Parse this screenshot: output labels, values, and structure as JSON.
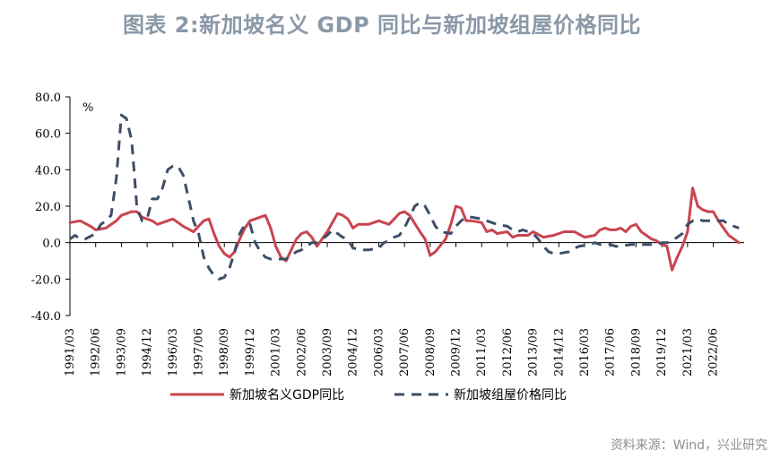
{
  "page": {
    "title": "图表 2:新加坡名义 GDP 同比与新加坡组屋价格同比",
    "source": "资料来源：Wind，兴业研究"
  },
  "chart_data": {
    "type": "line",
    "unit_label": "%",
    "ylim": [
      -40,
      80
    ],
    "yticks": [
      "80.0",
      "60.0",
      "40.0",
      "20.0",
      "0.0",
      "-20.0",
      "-40.0"
    ],
    "ytick_values": [
      80,
      60,
      40,
      20,
      0,
      -20,
      -40
    ],
    "x_tick_labels": [
      "1991/03",
      "1992/06",
      "1993/09",
      "1994/12",
      "1996/03",
      "1997/06",
      "1998/09",
      "1999/12",
      "2001/03",
      "2002/06",
      "2003/09",
      "2004/12",
      "2006/03",
      "2007/06",
      "2008/09",
      "2009/12",
      "2011/03",
      "2012/06",
      "2013/09",
      "2014/12",
      "2016/03",
      "2017/06",
      "2018/09",
      "2019/12",
      "2021/03",
      "2022/06"
    ],
    "x_start": "1991/03",
    "x_end": "2023/12",
    "grid": false,
    "legend_position": "bottom",
    "series": [
      {
        "name": "新加坡名义GDP同比",
        "color": "#c8454f",
        "style": "solid",
        "points": [
          [
            "1991/03",
            11
          ],
          [
            "1991/09",
            12
          ],
          [
            "1992/03",
            9
          ],
          [
            "1992/06",
            7
          ],
          [
            "1992/12",
            8
          ],
          [
            "1993/06",
            12
          ],
          [
            "1993/09",
            15
          ],
          [
            "1994/03",
            17
          ],
          [
            "1994/06",
            17
          ],
          [
            "1994/09",
            14
          ],
          [
            "1995/03",
            12
          ],
          [
            "1995/06",
            10
          ],
          [
            "1995/09",
            11
          ],
          [
            "1996/03",
            13
          ],
          [
            "1996/09",
            9
          ],
          [
            "1997/03",
            6
          ],
          [
            "1997/06",
            9
          ],
          [
            "1997/09",
            12
          ],
          [
            "1997/12",
            13
          ],
          [
            "1998/03",
            5
          ],
          [
            "1998/06",
            -2
          ],
          [
            "1998/09",
            -6
          ],
          [
            "1998/12",
            -8
          ],
          [
            "1999/03",
            -5
          ],
          [
            "1999/06",
            2
          ],
          [
            "1999/09",
            8
          ],
          [
            "1999/12",
            12
          ],
          [
            "2000/03",
            13
          ],
          [
            "2000/06",
            14
          ],
          [
            "2000/09",
            15
          ],
          [
            "2000/12",
            8
          ],
          [
            "2001/03",
            -2
          ],
          [
            "2001/06",
            -8
          ],
          [
            "2001/09",
            -10
          ],
          [
            "2001/12",
            -4
          ],
          [
            "2002/03",
            2
          ],
          [
            "2002/06",
            5
          ],
          [
            "2002/09",
            6
          ],
          [
            "2002/12",
            3
          ],
          [
            "2003/03",
            -2
          ],
          [
            "2003/06",
            2
          ],
          [
            "2003/09",
            6
          ],
          [
            "2004/03",
            16
          ],
          [
            "2004/06",
            15
          ],
          [
            "2004/09",
            13
          ],
          [
            "2004/12",
            8
          ],
          [
            "2005/03",
            10
          ],
          [
            "2005/09",
            10
          ],
          [
            "2006/03",
            12
          ],
          [
            "2006/09",
            10
          ],
          [
            "2007/03",
            16
          ],
          [
            "2007/06",
            17
          ],
          [
            "2007/09",
            15
          ],
          [
            "2008/03",
            6
          ],
          [
            "2008/06",
            2
          ],
          [
            "2008/09",
            -7
          ],
          [
            "2008/12",
            -5
          ],
          [
            "2009/06",
            2
          ],
          [
            "2009/09",
            10
          ],
          [
            "2009/12",
            20
          ],
          [
            "2010/03",
            19
          ],
          [
            "2010/06",
            12
          ],
          [
            "2010/09",
            12
          ],
          [
            "2011/03",
            11
          ],
          [
            "2011/06",
            6
          ],
          [
            "2011/09",
            7
          ],
          [
            "2011/12",
            5
          ],
          [
            "2012/06",
            6
          ],
          [
            "2012/09",
            3
          ],
          [
            "2012/12",
            4
          ],
          [
            "2013/06",
            4
          ],
          [
            "2013/09",
            6
          ],
          [
            "2014/03",
            3
          ],
          [
            "2014/09",
            4
          ],
          [
            "2014/12",
            5
          ],
          [
            "2015/03",
            6
          ],
          [
            "2015/09",
            6
          ],
          [
            "2016/03",
            3
          ],
          [
            "2016/09",
            4
          ],
          [
            "2016/12",
            7
          ],
          [
            "2017/03",
            8
          ],
          [
            "2017/06",
            7
          ],
          [
            "2017/09",
            7
          ],
          [
            "2017/12",
            8
          ],
          [
            "2018/03",
            6
          ],
          [
            "2018/06",
            9
          ],
          [
            "2018/09",
            10
          ],
          [
            "2018/12",
            6
          ],
          [
            "2019/06",
            2
          ],
          [
            "2019/09",
            1
          ],
          [
            "2019/12",
            -1
          ],
          [
            "2020/03",
            -2
          ],
          [
            "2020/06",
            -15
          ],
          [
            "2020/09",
            -8
          ],
          [
            "2020/12",
            -2
          ],
          [
            "2021/03",
            6
          ],
          [
            "2021/06",
            30
          ],
          [
            "2021/09",
            20
          ],
          [
            "2021/12",
            18
          ],
          [
            "2022/03",
            17
          ],
          [
            "2022/06",
            17
          ],
          [
            "2022/09",
            12
          ],
          [
            "2022/12",
            8
          ],
          [
            "2023/03",
            4
          ],
          [
            "2023/09",
            0
          ]
        ]
      },
      {
        "name": "新加坡组屋价格同比",
        "color": "#3d4e66",
        "style": "dashed",
        "points": [
          [
            "1991/03",
            2
          ],
          [
            "1991/06",
            4
          ],
          [
            "1991/09",
            2
          ],
          [
            "1991/12",
            2
          ],
          [
            "1992/06",
            5
          ],
          [
            "1992/09",
            10
          ],
          [
            "1992/12",
            12
          ],
          [
            "1993/03",
            15
          ],
          [
            "1993/06",
            35
          ],
          [
            "1993/09",
            70
          ],
          [
            "1993/12",
            68
          ],
          [
            "1994/03",
            56
          ],
          [
            "1994/06",
            20
          ],
          [
            "1994/09",
            12
          ],
          [
            "1994/12",
            13
          ],
          [
            "1995/03",
            24
          ],
          [
            "1995/06",
            24
          ],
          [
            "1995/09",
            30
          ],
          [
            "1995/12",
            40
          ],
          [
            "1996/03",
            42
          ],
          [
            "1996/06",
            42
          ],
          [
            "1996/09",
            37
          ],
          [
            "1996/12",
            25
          ],
          [
            "1997/03",
            12
          ],
          [
            "1997/06",
            5
          ],
          [
            "1997/09",
            -8
          ],
          [
            "1997/12",
            -14
          ],
          [
            "1998/03",
            -18
          ],
          [
            "1998/06",
            -20
          ],
          [
            "1998/09",
            -19
          ],
          [
            "1998/12",
            -14
          ],
          [
            "1999/03",
            -5
          ],
          [
            "1999/06",
            5
          ],
          [
            "1999/09",
            10
          ],
          [
            "1999/12",
            10
          ],
          [
            "2000/03",
            0
          ],
          [
            "2000/06",
            -5
          ],
          [
            "2000/09",
            -8
          ],
          [
            "2000/12",
            -9
          ],
          [
            "2001/06",
            -9
          ],
          [
            "2001/09",
            -9
          ],
          [
            "2001/12",
            -7
          ],
          [
            "2002/03",
            -5
          ],
          [
            "2002/06",
            -4
          ],
          [
            "2002/09",
            -2
          ],
          [
            "2002/12",
            0
          ],
          [
            "2003/03",
            0
          ],
          [
            "2003/09",
            4
          ],
          [
            "2003/12",
            7
          ],
          [
            "2004/03",
            5
          ],
          [
            "2004/06",
            3
          ],
          [
            "2004/09",
            2
          ],
          [
            "2004/12",
            -3
          ],
          [
            "2005/06",
            -4
          ],
          [
            "2005/09",
            -4
          ],
          [
            "2006/03",
            -3
          ],
          [
            "2006/06",
            0
          ],
          [
            "2006/09",
            1
          ],
          [
            "2006/12",
            3
          ],
          [
            "2007/03",
            4
          ],
          [
            "2007/06",
            8
          ],
          [
            "2007/09",
            14
          ],
          [
            "2007/12",
            20
          ],
          [
            "2008/03",
            22
          ],
          [
            "2008/06",
            20
          ],
          [
            "2008/09",
            15
          ],
          [
            "2008/12",
            9
          ],
          [
            "2009/03",
            6
          ],
          [
            "2009/09",
            5
          ],
          [
            "2009/12",
            9
          ],
          [
            "2010/03",
            12
          ],
          [
            "2010/06",
            14
          ],
          [
            "2010/09",
            14
          ],
          [
            "2011/03",
            13
          ],
          [
            "2011/06",
            12
          ],
          [
            "2011/09",
            11
          ],
          [
            "2011/12",
            10
          ],
          [
            "2012/06",
            9
          ],
          [
            "2012/09",
            7
          ],
          [
            "2012/12",
            6
          ],
          [
            "2013/03",
            7
          ],
          [
            "2013/06",
            6
          ],
          [
            "2013/09",
            5
          ],
          [
            "2013/12",
            2
          ],
          [
            "2014/03",
            -2
          ],
          [
            "2014/06",
            -5
          ],
          [
            "2014/09",
            -6
          ],
          [
            "2014/12",
            -6
          ],
          [
            "2015/06",
            -5
          ],
          [
            "2015/09",
            -3
          ],
          [
            "2015/12",
            -2
          ],
          [
            "2016/06",
            -1
          ],
          [
            "2016/09",
            0
          ],
          [
            "2016/12",
            -1
          ],
          [
            "2017/06",
            -1
          ],
          [
            "2017/09",
            -2
          ],
          [
            "2017/12",
            -2
          ],
          [
            "2018/06",
            -1
          ],
          [
            "2018/09",
            -1
          ],
          [
            "2018/12",
            -1
          ],
          [
            "2019/06",
            -1
          ],
          [
            "2019/09",
            -1
          ],
          [
            "2019/12",
            0
          ],
          [
            "2020/03",
            0
          ],
          [
            "2020/06",
            1
          ],
          [
            "2020/09",
            3
          ],
          [
            "2020/12",
            5
          ],
          [
            "2021/03",
            10
          ],
          [
            "2021/06",
            12
          ],
          [
            "2021/09",
            13
          ],
          [
            "2021/12",
            12
          ],
          [
            "2022/03",
            12
          ],
          [
            "2022/06",
            12
          ],
          [
            "2022/09",
            12
          ],
          [
            "2022/12",
            12
          ],
          [
            "2023/03",
            10
          ],
          [
            "2023/06",
            9
          ],
          [
            "2023/09",
            8
          ]
        ]
      }
    ]
  }
}
